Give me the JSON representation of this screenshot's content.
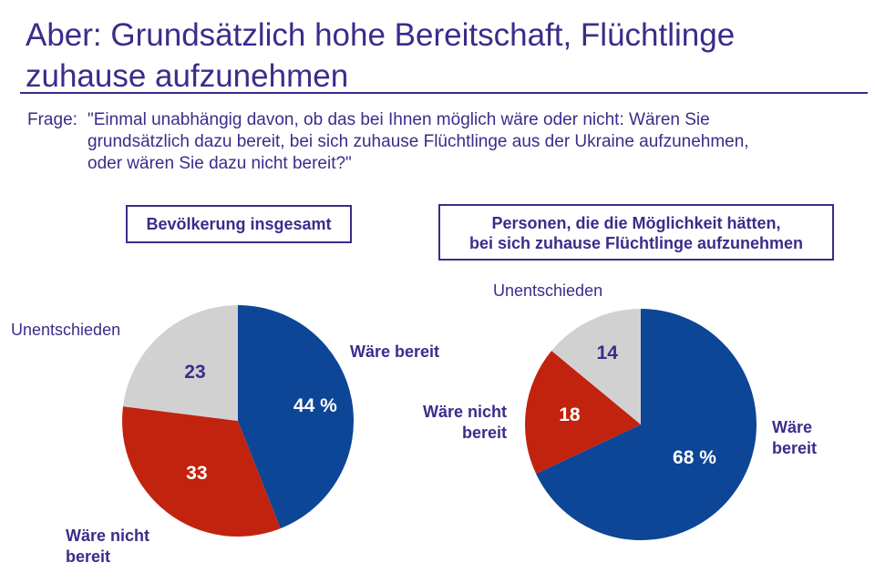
{
  "title": {
    "line1": "Aber: Grundsätzlich hohe Bereitschaft, Flüchtlinge",
    "line2": "zuhause aufzunehmen"
  },
  "question": {
    "label": "Frage:",
    "line1": "\"Einmal unabhängig davon, ob das bei Ihnen möglich wäre oder nicht: Wären Sie",
    "line2": "grundsätzlich dazu bereit, bei sich zuhause Flüchtlinge aus der Ukraine aufzunehmen,",
    "line3": "oder wären Sie dazu nicht bereit?\""
  },
  "colors": {
    "text": "#3a2d8a",
    "bereit": "#0d4597",
    "nicht_bereit": "#c1230f",
    "unentschieden": "#d1d1d1",
    "value_dark": "#3a2d8a",
    "value_light": "#ffffff"
  },
  "chart_data": [
    {
      "type": "pie",
      "title": "Bevölkerung insgesamt",
      "slices": [
        {
          "key": "bereit",
          "label_line1": "Wäre bereit",
          "label_line2": "",
          "value": 44,
          "display": "44 %"
        },
        {
          "key": "nicht_bereit",
          "label_line1": "Wäre nicht",
          "label_line2": "bereit",
          "value": 33,
          "display": "33"
        },
        {
          "key": "unentschieden",
          "label_line1": "Unentschieden",
          "label_line2": "",
          "value": 23,
          "display": "23"
        }
      ]
    },
    {
      "type": "pie",
      "title_line1": "Personen, die die Möglichkeit hätten,",
      "title_line2": "bei sich zuhause Flüchtlinge aufzunehmen",
      "slices": [
        {
          "key": "bereit",
          "label_line1": "Wäre",
          "label_line2": "bereit",
          "value": 68,
          "display": "68 %"
        },
        {
          "key": "nicht_bereit",
          "label_line1": "Wäre nicht",
          "label_line2": "bereit",
          "value": 18,
          "display": "18"
        },
        {
          "key": "unentschieden",
          "label_line1": "Unentschieden",
          "label_line2": "",
          "value": 14,
          "display": "14"
        }
      ]
    }
  ]
}
